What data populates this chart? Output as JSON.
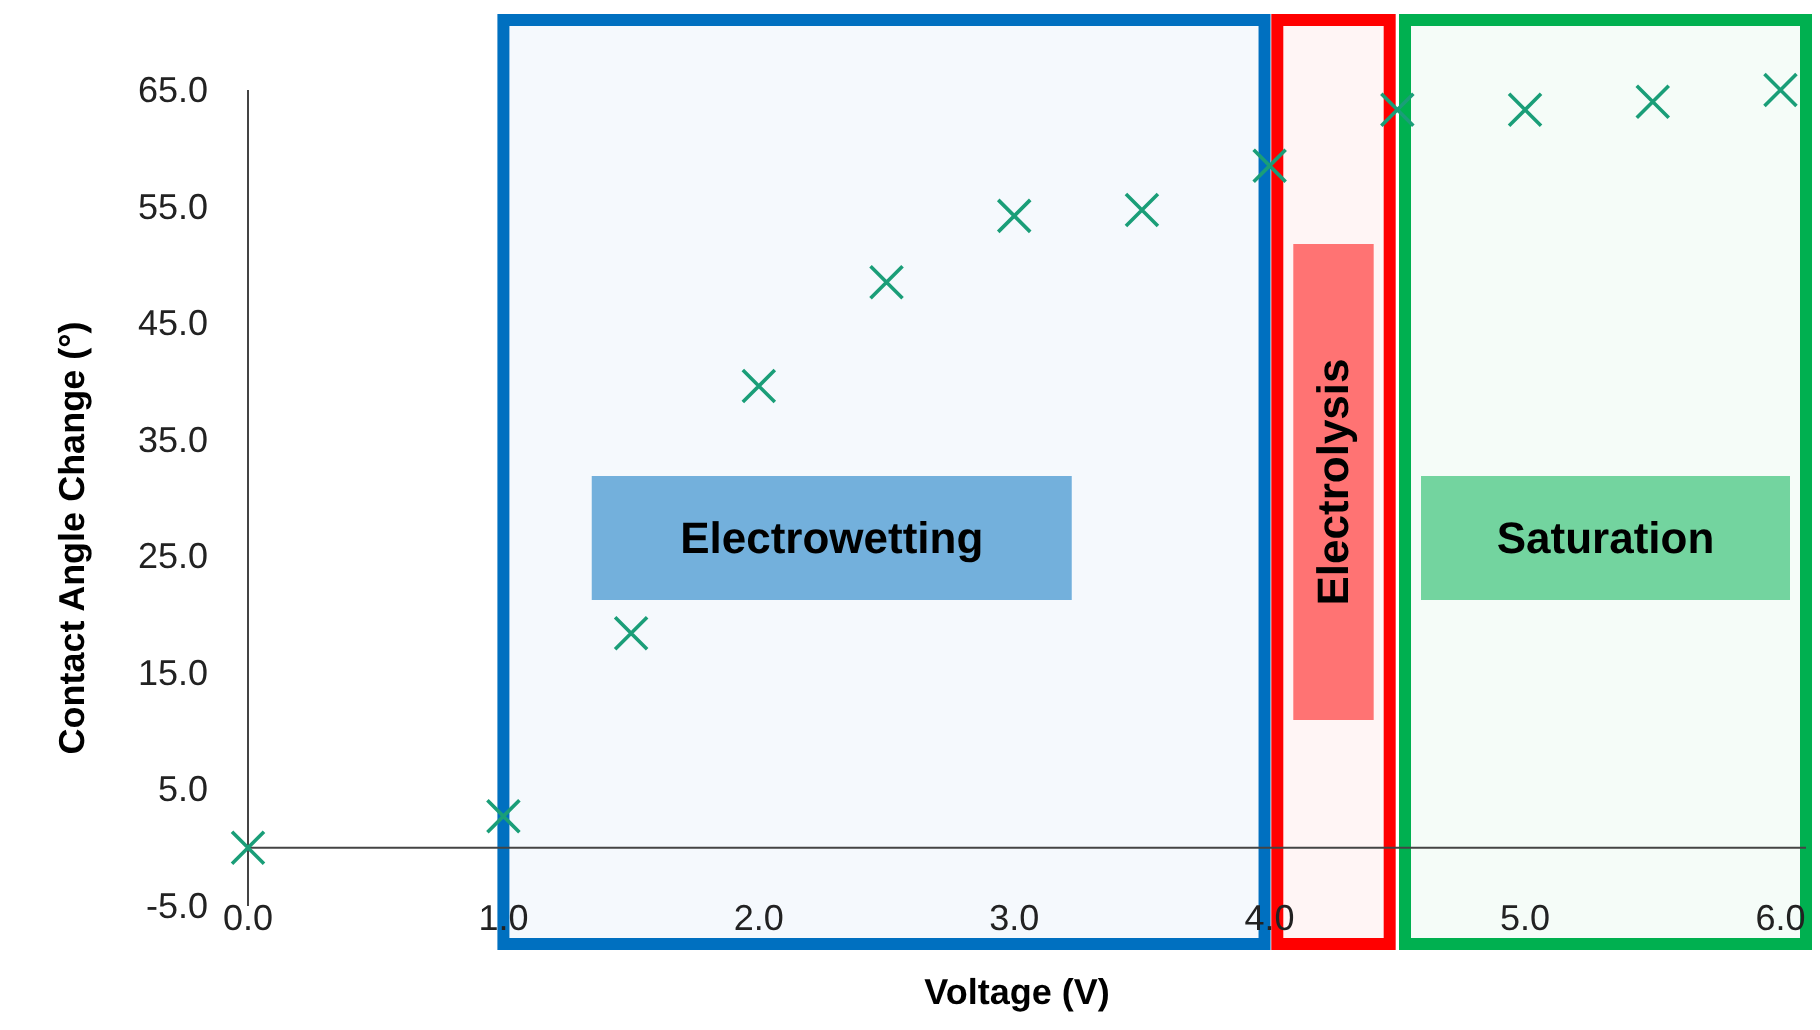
{
  "chart_data": {
    "type": "scatter",
    "xlabel": "Voltage (V)",
    "ylabel": "Contact Angle Change (°)",
    "x": [
      0,
      1.0,
      1.5,
      2.0,
      2.5,
      3.0,
      3.5,
      4.0,
      4.5,
      5.0,
      5.5,
      6.0
    ],
    "series": [
      {
        "color": "#1a9e78",
        "values": [
          0,
          2.7,
          18.4,
          39.6,
          48.5,
          54.2,
          54.7,
          58.5,
          63.3,
          63.3,
          64.0,
          65.0
        ]
      }
    ],
    "marker": "cross",
    "grid": false,
    "xlim": [
      0,
      6.1
    ],
    "ylim": [
      -5,
      65
    ],
    "xticks": [
      {
        "value": 0,
        "label": "0.0"
      },
      {
        "value": 1,
        "label": "1.0"
      },
      {
        "value": 2,
        "label": "2.0"
      },
      {
        "value": 3,
        "label": "3.0"
      },
      {
        "value": 4,
        "label": "4.0"
      },
      {
        "value": 5,
        "label": "5.0"
      },
      {
        "value": 6,
        "label": "6.0"
      }
    ],
    "yticks": [
      {
        "value": -5,
        "label": "-5.0"
      },
      {
        "value": 5,
        "label": "5.0"
      },
      {
        "value": 15,
        "label": "15.0"
      },
      {
        "value": 25,
        "label": "25.0"
      },
      {
        "value": 35,
        "label": "35.0"
      },
      {
        "value": 45,
        "label": "45.0"
      },
      {
        "value": 55,
        "label": "55.0"
      },
      {
        "value": 65,
        "label": "65.0"
      }
    ],
    "bands": [
      {
        "axis": "x",
        "from": 1.0,
        "to": 3.98,
        "label": "Electrowetting",
        "color": "#0070c0"
      },
      {
        "axis": "x",
        "from": 4.03,
        "to": 4.47,
        "label": "Electrolysis",
        "color": "#ff0000"
      },
      {
        "axis": "x",
        "from": 4.53,
        "to": 6.1,
        "label": "Saturation",
        "color": "#00b050"
      }
    ]
  }
}
